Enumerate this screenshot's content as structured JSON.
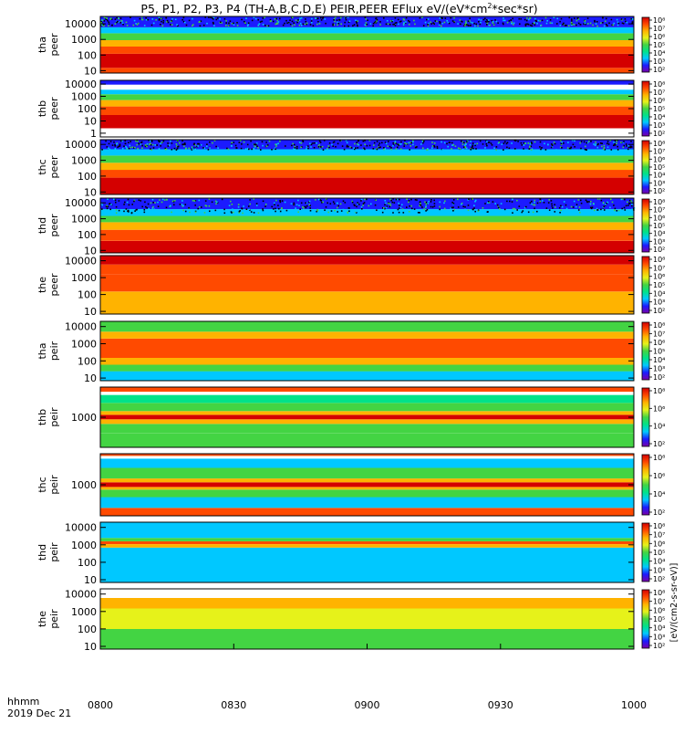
{
  "chart_data": {
    "type": "heatmap",
    "title_main": "P5, P1, P2, P3, P4 (TH-A,B,C,D,E) PEIR,PEER EFlux eV/(eV*cm",
    "title_sup": "2",
    "title_tail": "*sec*sr)",
    "x_axis": {
      "ticks": [
        "0800",
        "0830",
        "0900",
        "0930",
        "1000"
      ],
      "range": [
        "08:00",
        "10:00"
      ],
      "corner_label_1": "hhmm",
      "corner_label_2": "2019 Dec 21"
    },
    "colorbar": {
      "scale": "log",
      "ticks_full": [
        "10²",
        "10³",
        "10⁴",
        "10⁵",
        "10⁶",
        "10⁷",
        "10⁸"
      ],
      "ticks_short": [
        "10²",
        "10⁴",
        "10⁶",
        "10⁸"
      ],
      "unit_label": "[eV/(cm2-s-sr-eV)]",
      "colors": [
        "#7a00a8",
        "#1b1bff",
        "#00c8ff",
        "#00e28a",
        "#43d443",
        "#e6f21a",
        "#ffb300",
        "#ff4a00",
        "#d40000"
      ]
    },
    "panels": [
      {
        "probe": "tha",
        "species": "peer",
        "yscale": "log",
        "yticks": [
          "10",
          "100",
          "1000",
          "10000"
        ],
        "ylim": [
          7,
          30000
        ],
        "cbar_ticks": "full",
        "bands": [
          {
            "e_lo": 7,
            "e_hi": 15,
            "color": "#ff4a00"
          },
          {
            "e_lo": 15,
            "e_hi": 120,
            "color": "#d40000"
          },
          {
            "e_lo": 120,
            "e_hi": 350,
            "color": "#ff4a00"
          },
          {
            "e_lo": 350,
            "e_hi": 900,
            "color": "#ffb300"
          },
          {
            "e_lo": 900,
            "e_hi": 2500,
            "color": "#43d443"
          },
          {
            "e_lo": 2500,
            "e_hi": 6000,
            "color": "#00c8ff"
          },
          {
            "e_lo": 6000,
            "e_hi": 30000,
            "color": "#1b1bff"
          }
        ],
        "noise_above": 8000
      },
      {
        "probe": "thb",
        "species": "peer",
        "yscale": "log",
        "yticks": [
          "1",
          "10",
          "100",
          "1000",
          "10000"
        ],
        "ylim": [
          0.5,
          20000
        ],
        "cbar_ticks": "full",
        "bands": [
          {
            "e_lo": 0.5,
            "e_hi": 2.5,
            "color": "#ffffff"
          },
          {
            "e_lo": 2.5,
            "e_hi": 30,
            "color": "#d40000"
          },
          {
            "e_lo": 30,
            "e_hi": 150,
            "color": "#ff4a00"
          },
          {
            "e_lo": 150,
            "e_hi": 500,
            "color": "#ffb300"
          },
          {
            "e_lo": 500,
            "e_hi": 1500,
            "color": "#43d443"
          },
          {
            "e_lo": 1500,
            "e_hi": 3500,
            "color": "#00c8ff"
          },
          {
            "e_lo": 3500,
            "e_hi": 9000,
            "color": "#ffffff"
          },
          {
            "e_lo": 9000,
            "e_hi": 20000,
            "color": "#1b1bff"
          }
        ],
        "noise_above": 99999
      },
      {
        "probe": "thc",
        "species": "peer",
        "yscale": "log",
        "yticks": [
          "10",
          "100",
          "1000",
          "10000"
        ],
        "ylim": [
          7,
          20000
        ],
        "cbar_ticks": "full",
        "bands": [
          {
            "e_lo": 7,
            "e_hi": 80,
            "color": "#d40000"
          },
          {
            "e_lo": 80,
            "e_hi": 250,
            "color": "#ff4a00"
          },
          {
            "e_lo": 250,
            "e_hi": 700,
            "color": "#ffb300"
          },
          {
            "e_lo": 700,
            "e_hi": 2000,
            "color": "#43d443"
          },
          {
            "e_lo": 2000,
            "e_hi": 5000,
            "color": "#00c8ff"
          },
          {
            "e_lo": 5000,
            "e_hi": 20000,
            "color": "#1b1bff"
          }
        ],
        "noise_above": 5000
      },
      {
        "probe": "thd",
        "species": "peer",
        "yscale": "log",
        "yticks": [
          "10",
          "100",
          "1000",
          "10000"
        ],
        "ylim": [
          7,
          20000
        ],
        "cbar_ticks": "full",
        "bands": [
          {
            "e_lo": 7,
            "e_hi": 40,
            "color": "#d40000"
          },
          {
            "e_lo": 40,
            "e_hi": 200,
            "color": "#ff4a00"
          },
          {
            "e_lo": 200,
            "e_hi": 600,
            "color": "#ffb300"
          },
          {
            "e_lo": 600,
            "e_hi": 1500,
            "color": "#43d443"
          },
          {
            "e_lo": 1500,
            "e_hi": 4000,
            "color": "#00c8ff"
          },
          {
            "e_lo": 4000,
            "e_hi": 20000,
            "color": "#1b1bff"
          }
        ],
        "noise_above": 2500
      },
      {
        "probe": "the",
        "species": "peer",
        "yscale": "log",
        "yticks": [
          "10",
          "100",
          "1000",
          "10000"
        ],
        "ylim": [
          7,
          20000
        ],
        "cbar_ticks": "full",
        "bands": [
          {
            "e_lo": 7,
            "e_hi": 150,
            "color": "#ffb300"
          },
          {
            "e_lo": 150,
            "e_hi": 1500,
            "color": "#ff4a00"
          },
          {
            "e_lo": 1500,
            "e_hi": 6000,
            "color": "#ff4a00"
          },
          {
            "e_lo": 6000,
            "e_hi": 20000,
            "color": "#d40000"
          }
        ],
        "noise_above": 99999
      },
      {
        "probe": "tha",
        "species": "peir",
        "yscale": "log",
        "yticks": [
          "10",
          "100",
          "1000",
          "10000"
        ],
        "ylim": [
          7,
          20000
        ],
        "cbar_ticks": "full",
        "bands": [
          {
            "e_lo": 7,
            "e_hi": 25,
            "color": "#00c8ff"
          },
          {
            "e_lo": 25,
            "e_hi": 60,
            "color": "#43d443"
          },
          {
            "e_lo": 60,
            "e_hi": 150,
            "color": "#ffb300"
          },
          {
            "e_lo": 150,
            "e_hi": 2000,
            "color": "#ff4a00"
          },
          {
            "e_lo": 2000,
            "e_hi": 5000,
            "color": "#ffb300"
          },
          {
            "e_lo": 5000,
            "e_hi": 20000,
            "color": "#43d443"
          }
        ],
        "noise_above": 99999
      },
      {
        "probe": "thb",
        "species": "peir",
        "yscale": "log",
        "yticks": [
          "1000"
        ],
        "ylim": [
          100,
          10000
        ],
        "cbar_ticks": "short",
        "bands": [
          {
            "e_lo": 100,
            "e_hi": 300,
            "color": "#43d443"
          },
          {
            "e_lo": 300,
            "e_hi": 600,
            "color": "#43d443"
          },
          {
            "e_lo": 600,
            "e_hi": 850,
            "color": "#ffb300"
          },
          {
            "e_lo": 850,
            "e_hi": 1200,
            "color": "#d40000"
          },
          {
            "e_lo": 1200,
            "e_hi": 1600,
            "color": "#ffb300"
          },
          {
            "e_lo": 1600,
            "e_hi": 3000,
            "color": "#43d443"
          },
          {
            "e_lo": 3000,
            "e_hi": 5500,
            "color": "#00e28a"
          },
          {
            "e_lo": 5500,
            "e_hi": 7000,
            "color": "#ffffff"
          },
          {
            "e_lo": 7000,
            "e_hi": 10000,
            "color": "#ff4a00"
          }
        ],
        "noise_above": 99999
      },
      {
        "probe": "thc",
        "species": "peir",
        "yscale": "log",
        "yticks": [
          "1000"
        ],
        "ylim": [
          100,
          10000
        ],
        "cbar_ticks": "short",
        "bands": [
          {
            "e_lo": 100,
            "e_hi": 180,
            "color": "#ff4a00"
          },
          {
            "e_lo": 180,
            "e_hi": 400,
            "color": "#00c8ff"
          },
          {
            "e_lo": 400,
            "e_hi": 700,
            "color": "#43d443"
          },
          {
            "e_lo": 700,
            "e_hi": 850,
            "color": "#ffb300"
          },
          {
            "e_lo": 850,
            "e_hi": 1200,
            "color": "#d40000"
          },
          {
            "e_lo": 1200,
            "e_hi": 1600,
            "color": "#ffb300"
          },
          {
            "e_lo": 1600,
            "e_hi": 3500,
            "color": "#43d443"
          },
          {
            "e_lo": 3500,
            "e_hi": 7000,
            "color": "#00c8ff"
          },
          {
            "e_lo": 7000,
            "e_hi": 8500,
            "color": "#ffffff"
          },
          {
            "e_lo": 8500,
            "e_hi": 10000,
            "color": "#ff4a00"
          }
        ],
        "noise_above": 99999
      },
      {
        "probe": "thd",
        "species": "peir",
        "yscale": "log",
        "yticks": [
          "10",
          "100",
          "1000",
          "10000"
        ],
        "ylim": [
          7,
          20000
        ],
        "cbar_ticks": "full",
        "bands": [
          {
            "e_lo": 7,
            "e_hi": 700,
            "color": "#00c8ff"
          },
          {
            "e_lo": 700,
            "e_hi": 1100,
            "color": "#ffb300"
          },
          {
            "e_lo": 1100,
            "e_hi": 1600,
            "color": "#ff4a00"
          },
          {
            "e_lo": 1600,
            "e_hi": 2500,
            "color": "#43d443"
          },
          {
            "e_lo": 2500,
            "e_hi": 20000,
            "color": "#00c8ff"
          }
        ],
        "noise_above": 99999
      },
      {
        "probe": "the",
        "species": "peir",
        "yscale": "log",
        "yticks": [
          "10",
          "100",
          "1000",
          "10000"
        ],
        "ylim": [
          7,
          20000
        ],
        "cbar_ticks": "full",
        "bands": [
          {
            "e_lo": 7,
            "e_hi": 100,
            "color": "#43d443"
          },
          {
            "e_lo": 100,
            "e_hi": 1500,
            "color": "#e6f21a"
          },
          {
            "e_lo": 1500,
            "e_hi": 6000,
            "color": "#ffb300"
          },
          {
            "e_lo": 6000,
            "e_hi": 20000,
            "color": "#ffffff"
          }
        ],
        "noise_above": 99999
      }
    ]
  }
}
